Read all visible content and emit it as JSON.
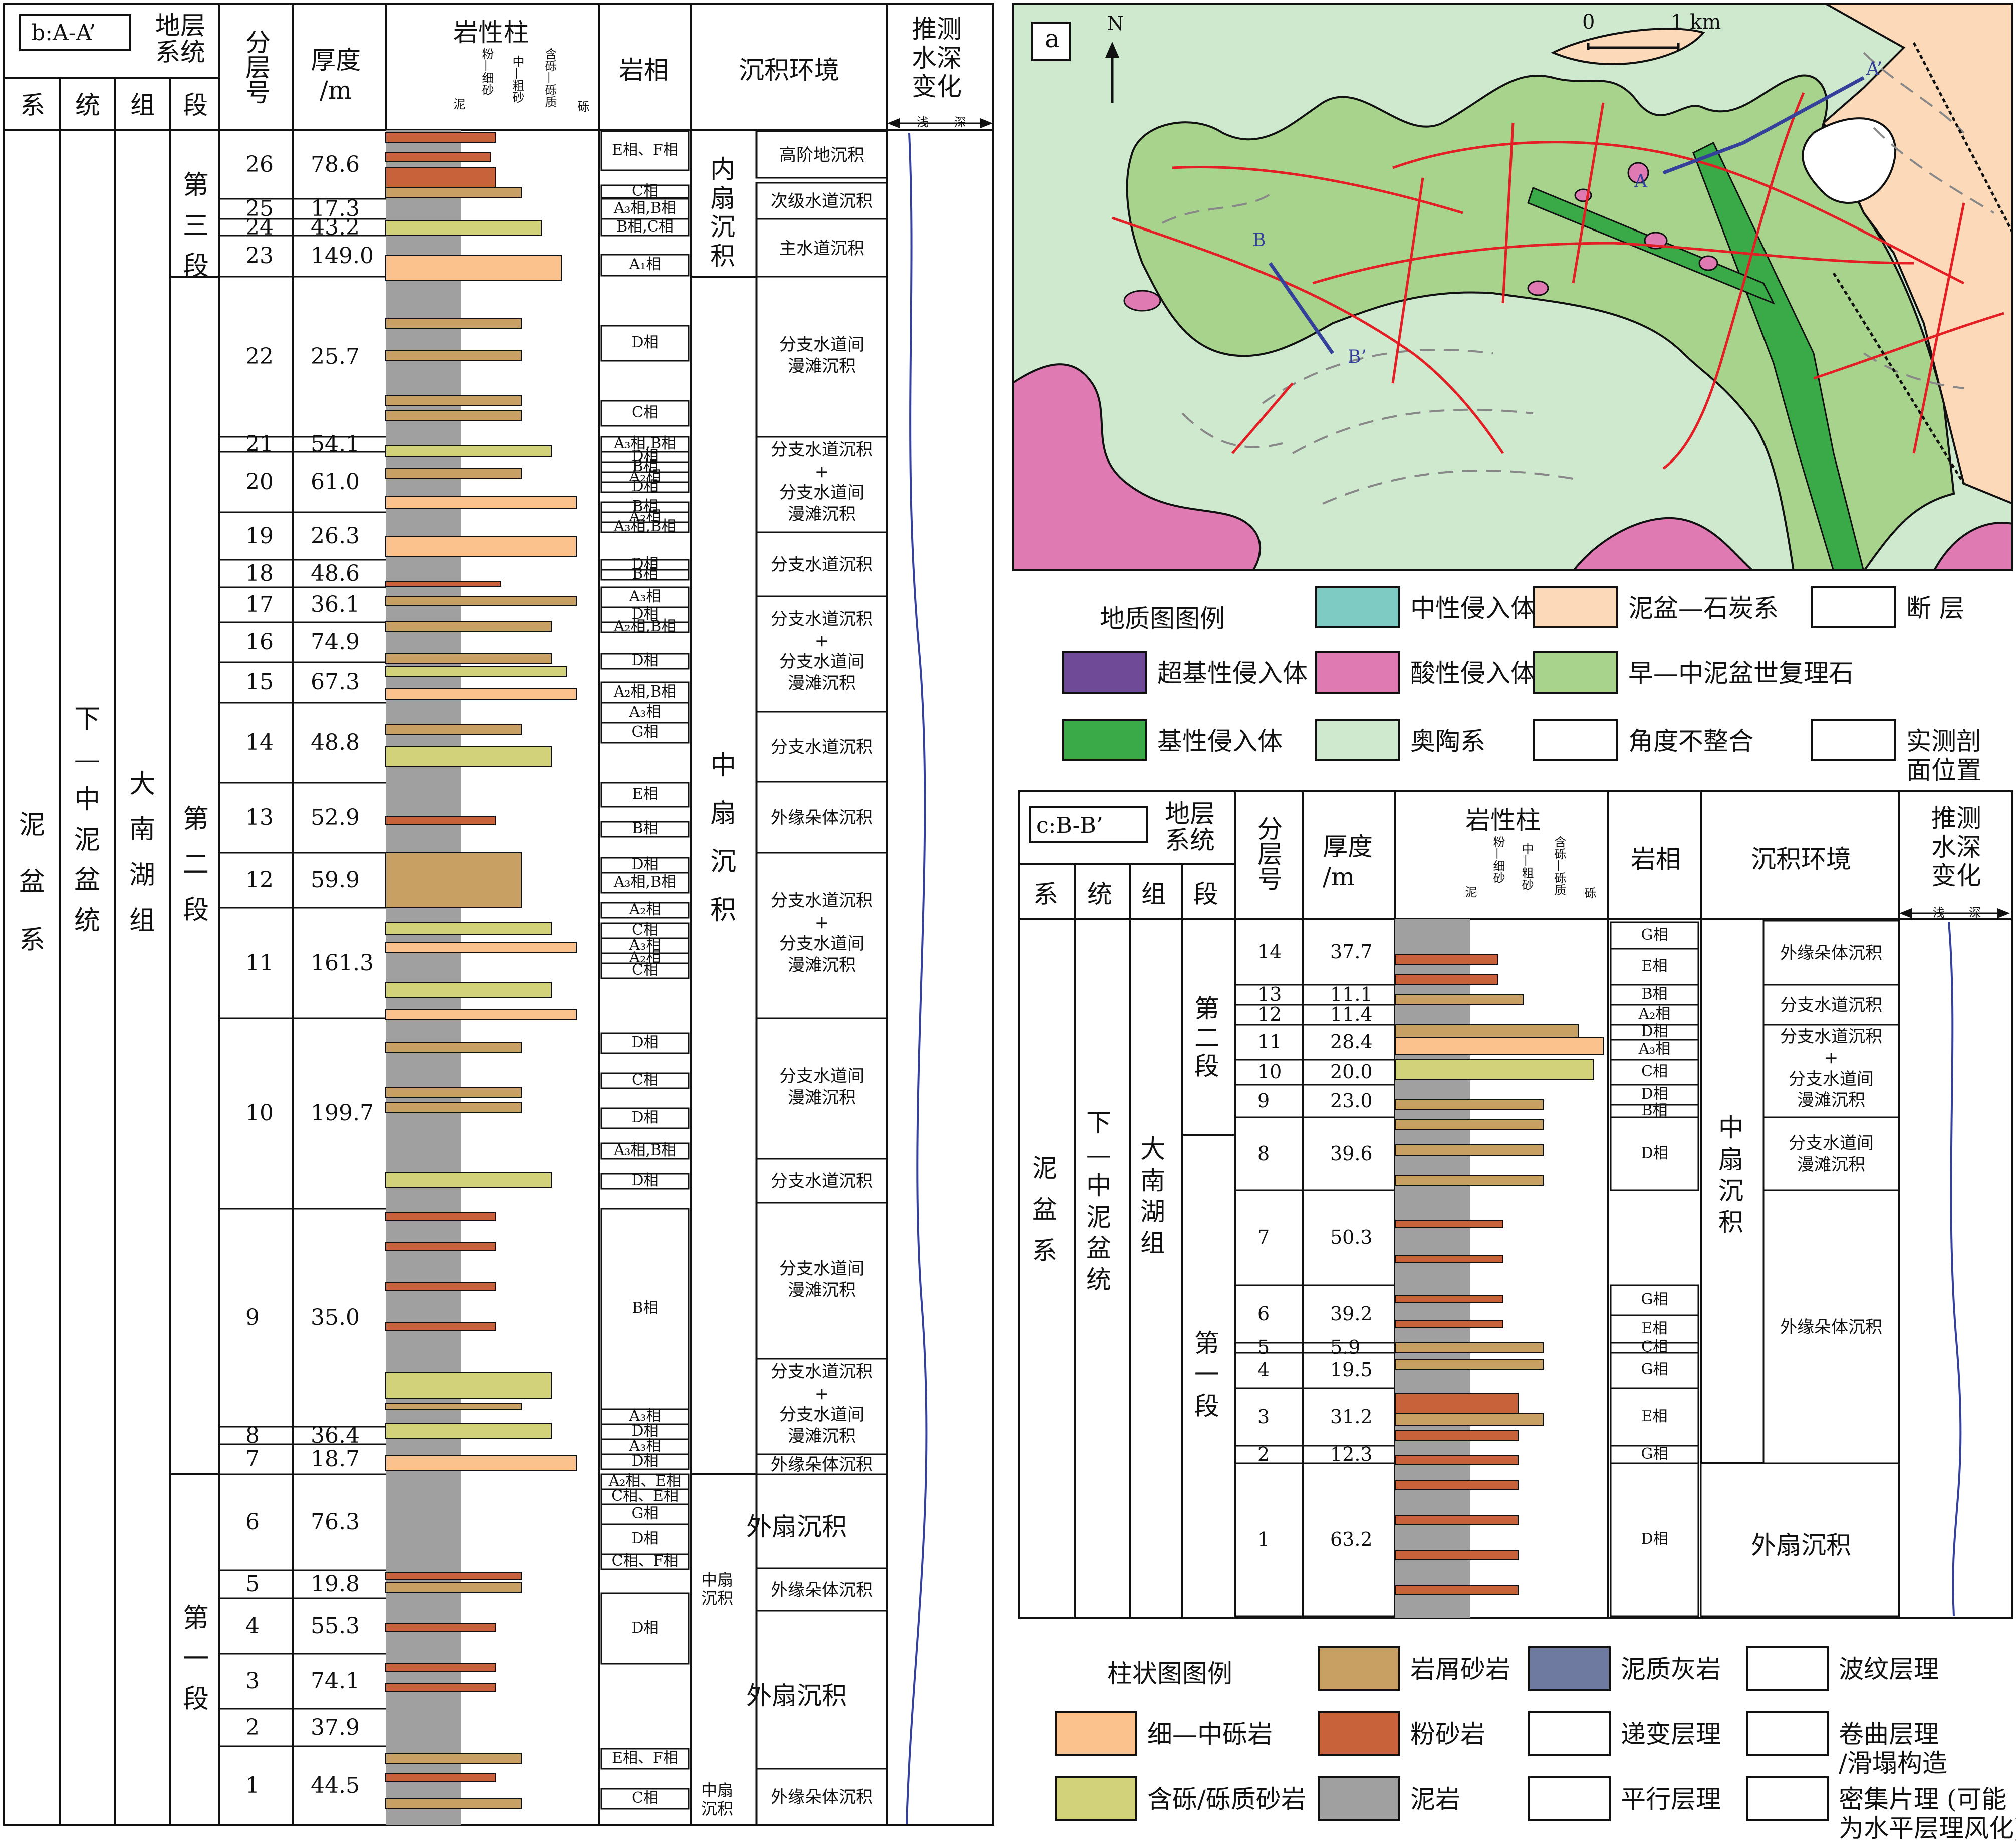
{
  "section_b": {
    "title": "b:A-A’",
    "headers": {
      "stratigraphy": "地层\n系统",
      "layer_no": "分\n层\n号",
      "thickness": "厚度\n/m",
      "lithology": "岩性柱",
      "facies": "岩相",
      "environment": "沉积环境",
      "water_depth": "推测\n水深\n变化",
      "system": "系",
      "series": "统",
      "formation": "组",
      "member": "段",
      "shallow": "浅",
      "deep": "深"
    },
    "grain_scale": [
      "泥",
      "粉—细砂",
      "中—粗砂",
      "含砾—砾质",
      "砾"
    ],
    "system_name": "泥\n盆\n系",
    "series_name": "下\n—\n中\n泥\n盆\n统",
    "formation_name": "大\n南\n湖\n组",
    "members": [
      "第\n三\n段",
      "第\n二\n段",
      "第\n一\n段"
    ],
    "layers": [
      {
        "no": "26",
        "thk": "78.6"
      },
      {
        "no": "25",
        "thk": "17.3"
      },
      {
        "no": "24",
        "thk": "43.2"
      },
      {
        "no": "23",
        "thk": "149.0"
      },
      {
        "no": "22",
        "thk": "25.7"
      },
      {
        "no": "21",
        "thk": "54.1"
      },
      {
        "no": "20",
        "thk": "61.0"
      },
      {
        "no": "19",
        "thk": "26.3"
      },
      {
        "no": "18",
        "thk": "48.6"
      },
      {
        "no": "17",
        "thk": "36.1"
      },
      {
        "no": "16",
        "thk": "74.9"
      },
      {
        "no": "15",
        "thk": "67.3"
      },
      {
        "no": "14",
        "thk": "48.8"
      },
      {
        "no": "13",
        "thk": "52.9"
      },
      {
        "no": "12",
        "thk": "59.9"
      },
      {
        "no": "11",
        "thk": "161.3"
      },
      {
        "no": "10",
        "thk": "199.7"
      },
      {
        "no": "9",
        "thk": "35.0"
      },
      {
        "no": "8",
        "thk": "36.4"
      },
      {
        "no": "7",
        "thk": "18.7"
      },
      {
        "no": "6",
        "thk": "76.3"
      },
      {
        "no": "5",
        "thk": "19.8"
      },
      {
        "no": "4",
        "thk": "55.3"
      },
      {
        "no": "3",
        "thk": "74.1"
      },
      {
        "no": "2",
        "thk": "37.9"
      },
      {
        "no": "1",
        "thk": "44.5"
      }
    ],
    "facies": [
      "E相、F相",
      "C相",
      "A₃相,B相",
      "B相,C相",
      "A₁相",
      "D相",
      "C相",
      "A₃相,B相",
      "D相",
      "B相",
      "A₂相",
      "D相",
      "B相",
      "A₂相",
      "A₃相,B相",
      "D相",
      "B相",
      "A₃相",
      "D相",
      "A₂相,B相",
      "D相",
      "A₂相,B相",
      "A₃相",
      "G相",
      "E相",
      "B相",
      "D相",
      "A₃相,B相",
      "A₂相",
      "C相",
      "A₃相",
      "A₂相",
      "C相",
      "D相",
      "C相",
      "D相",
      "A₃相,B相",
      "D相",
      "B相",
      "A₃相",
      "D相",
      "A₃相",
      "D相",
      "A₂相、E相",
      "C相、E相",
      "G相",
      "D相",
      "C相、F相",
      "D相",
      "E相、F相",
      "C相"
    ],
    "environments": {
      "inner_fan": "内\n扇\n沉\n积",
      "middle_fan": "中\n扇\n沉\n积",
      "outer_fan": "外扇沉积",
      "middle_fan_small": "中扇\n沉积",
      "e1": "高阶地沉积",
      "e2": "次级水道沉积",
      "e3": "主水道沉积",
      "e4": "分支水道间\n漫滩沉积",
      "e5": "分支水道沉积\n+\n分支水道间\n漫滩沉积",
      "e6": "分支水道沉积",
      "e7": "外缘朵体沉积"
    }
  },
  "section_c": {
    "title": "c:B-B’",
    "system_name": "泥\n盆\n系",
    "series_name": "下\n—\n中\n泥\n盆\n统",
    "formation_name": "大\n南\n湖\n组",
    "members": [
      "第\n二\n段",
      "第\n一\n段"
    ],
    "layers": [
      {
        "no": "14",
        "thk": "37.7"
      },
      {
        "no": "13",
        "thk": "11.1"
      },
      {
        "no": "12",
        "thk": "11.4"
      },
      {
        "no": "11",
        "thk": "28.4"
      },
      {
        "no": "10",
        "thk": "20.0"
      },
      {
        "no": "9",
        "thk": "23.0"
      },
      {
        "no": "8",
        "thk": "39.6"
      },
      {
        "no": "7",
        "thk": "50.3"
      },
      {
        "no": "6",
        "thk": "39.2"
      },
      {
        "no": "5",
        "thk": "5.9"
      },
      {
        "no": "4",
        "thk": "19.5"
      },
      {
        "no": "3",
        "thk": "31.2"
      },
      {
        "no": "2",
        "thk": "12.3"
      },
      {
        "no": "1",
        "thk": "63.2"
      }
    ],
    "facies": [
      "G相",
      "E相",
      "B相",
      "A₂相",
      "D相",
      "A₃相",
      "C相",
      "D相",
      "B相",
      "D相",
      "G相",
      "E相",
      "C相",
      "G相",
      "E相",
      "G相",
      "D相"
    ],
    "environments": {
      "middle_fan": "中\n扇\n沉\n积",
      "outer_fan": "外扇沉积",
      "e1": "外缘朵体沉积",
      "e2": "分支水道沉积",
      "e3": "分支水道沉积\n+\n分支水道间\n漫滩沉积",
      "e4": "分支水道间\n漫滩沉积",
      "e5": "外缘朵体沉积"
    }
  },
  "map_a": {
    "label": "a",
    "north": "N",
    "scale_0": "0",
    "scale_1": "1 km",
    "points": {
      "A": "A",
      "A2": "A’",
      "B": "B",
      "B2": "B’"
    }
  },
  "geo_legend": {
    "title": "地质图图例",
    "items": [
      {
        "label": "中性侵入体",
        "color": "#7dcbc3"
      },
      {
        "label": "泥盆—石炭系",
        "color": "#fbd9b9"
      },
      {
        "label": "断 层",
        "color": "#e31e24"
      },
      {
        "label": "超基性侵入体",
        "color": "#6f4a97"
      },
      {
        "label": "酸性侵入体",
        "color": "#e07ab3"
      },
      {
        "label": "早—中泥盆世复理石",
        "color": "#a8d38d"
      },
      {
        "label": "基性侵入体",
        "color": "#3aaa48"
      },
      {
        "label": "奥陶系",
        "color": "#cfe9cf"
      },
      {
        "label": "角度不整合",
        "color": "#111111"
      },
      {
        "label": "实测剖\n面位置",
        "color": "#34409a"
      }
    ]
  },
  "col_legend": {
    "title": "柱状图图例",
    "items": [
      {
        "label": "岩屑砂岩",
        "color": "#c8a063"
      },
      {
        "label": "泥质灰岩",
        "color": "#6e7a9f"
      },
      {
        "label": "波纹层理",
        "color": "#ffffff"
      },
      {
        "label": "细—中砾岩",
        "color": "#fbc28d"
      },
      {
        "label": "粉砂岩",
        "color": "#c8623a"
      },
      {
        "label": "递变层理",
        "color": "#ffffff"
      },
      {
        "label": "卷曲层理\n/滑塌构造",
        "color": "#ffffff"
      },
      {
        "label": "含砾/砾质砂岩",
        "color": "#d2d27a"
      },
      {
        "label": "泥岩",
        "color": "#a0a0a0"
      },
      {
        "label": "平行层理",
        "color": "#ffffff"
      },
      {
        "label": "密集片理 (可能\n为水平层理风化)",
        "color": "#ffffff"
      }
    ]
  }
}
